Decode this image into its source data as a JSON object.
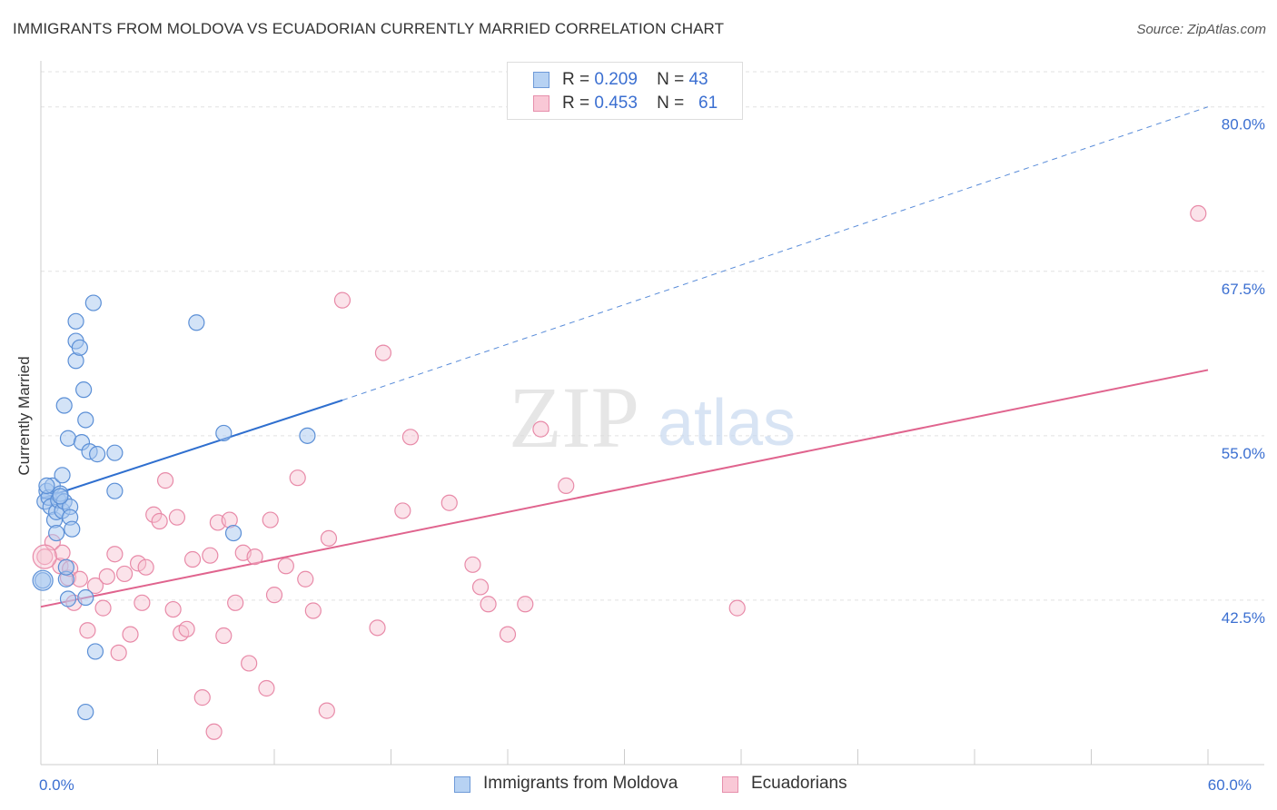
{
  "title": "IMMIGRANTS FROM MOLDOVA VS ECUADORIAN CURRENTLY MARRIED CORRELATION CHART",
  "source": "Source: ZipAtlas.com",
  "watermark": {
    "zip": "ZIP",
    "atlas": "atlas"
  },
  "legend_top": [
    {
      "r_label": "R =",
      "r_value": "0.209",
      "n_label": "N =",
      "n_value": "43"
    },
    {
      "r_label": "R =",
      "r_value": "0.453",
      "n_label": "N =",
      "n_value": "61"
    }
  ],
  "legend_bottom": [
    "Immigrants from Moldova",
    "Ecuadorians"
  ],
  "colors": {
    "blue_fill": "#a8c8f0",
    "blue_stroke": "#5b8fd6",
    "blue_line": "#2f6fcf",
    "pink_fill": "#f6c0d0",
    "pink_stroke": "#e88aa8",
    "pink_line": "#e0648e",
    "tick_label": "#3b6fd1",
    "grid": "#e2e2e2"
  },
  "chart_data": {
    "type": "scatter",
    "title": "IMMIGRANTS FROM MOLDOVA VS ECUADORIAN CURRENTLY MARRIED CORRELATION CHART",
    "xlabel": "",
    "ylabel": "Currently Married",
    "xlim": [
      0,
      60
    ],
    "ylim": [
      30,
      83.5
    ],
    "x_tick_labels": [
      {
        "value": 0,
        "label": "0.0%"
      },
      {
        "value": 60,
        "label": "60.0%"
      }
    ],
    "x_minor_ticks": [
      0,
      6,
      12,
      18,
      24,
      30,
      36,
      42,
      48,
      54,
      60
    ],
    "y_ticks": [
      {
        "value": 42.5,
        "label": "42.5%"
      },
      {
        "value": 55.0,
        "label": "55.0%"
      },
      {
        "value": 67.5,
        "label": "67.5%"
      },
      {
        "value": 80.0,
        "label": "80.0%"
      }
    ],
    "series": [
      {
        "name": "Immigrants from Moldova",
        "color": "blue",
        "r": 0.209,
        "n": 43,
        "trend": {
          "x0": 0,
          "y0": 50.2,
          "x1": 15.5,
          "y1": 57.7,
          "dash_to_x": 60,
          "dash_to_y": 80.0
        },
        "points": [
          [
            0.1,
            44.0
          ],
          [
            0.2,
            50.0
          ],
          [
            0.3,
            50.8
          ],
          [
            0.4,
            50.3
          ],
          [
            0.5,
            49.6
          ],
          [
            0.6,
            51.2
          ],
          [
            0.7,
            48.6
          ],
          [
            0.8,
            47.6
          ],
          [
            0.8,
            49.2
          ],
          [
            0.9,
            50.1
          ],
          [
            1.0,
            50.6
          ],
          [
            1.1,
            49.3
          ],
          [
            1.1,
            52.0
          ],
          [
            1.2,
            50.0
          ],
          [
            1.2,
            57.3
          ],
          [
            1.3,
            44.1
          ],
          [
            1.3,
            45.0
          ],
          [
            1.4,
            42.6
          ],
          [
            1.4,
            54.8
          ],
          [
            1.5,
            49.6
          ],
          [
            1.5,
            48.8
          ],
          [
            1.6,
            47.9
          ],
          [
            1.8,
            63.7
          ],
          [
            1.8,
            62.2
          ],
          [
            1.8,
            60.7
          ],
          [
            2.0,
            61.7
          ],
          [
            2.1,
            54.5
          ],
          [
            2.2,
            58.5
          ],
          [
            2.3,
            56.2
          ],
          [
            2.3,
            42.7
          ],
          [
            2.5,
            53.8
          ],
          [
            2.7,
            65.1
          ],
          [
            2.8,
            38.6
          ],
          [
            2.9,
            53.6
          ],
          [
            2.3,
            34.0
          ],
          [
            3.8,
            53.7
          ],
          [
            3.8,
            50.8
          ],
          [
            8.0,
            63.6
          ],
          [
            9.4,
            55.2
          ],
          [
            9.9,
            47.6
          ],
          [
            13.7,
            55.0
          ],
          [
            0.3,
            51.2
          ],
          [
            1.0,
            50.4
          ]
        ]
      },
      {
        "name": "Ecuadorians",
        "color": "pink",
        "r": 0.453,
        "n": 61,
        "trend": {
          "x0": 0,
          "y0": 42.0,
          "x1": 60,
          "y1": 60.0
        },
        "points": [
          [
            0.2,
            45.8
          ],
          [
            0.6,
            46.9
          ],
          [
            1.0,
            45.1
          ],
          [
            1.1,
            46.1
          ],
          [
            1.4,
            44.2
          ],
          [
            1.5,
            44.9
          ],
          [
            1.7,
            42.3
          ],
          [
            2.0,
            44.1
          ],
          [
            2.4,
            40.2
          ],
          [
            2.8,
            43.6
          ],
          [
            3.2,
            41.9
          ],
          [
            3.4,
            44.3
          ],
          [
            3.8,
            46.0
          ],
          [
            4.0,
            38.5
          ],
          [
            4.3,
            44.5
          ],
          [
            4.6,
            39.9
          ],
          [
            5.0,
            45.3
          ],
          [
            5.2,
            42.3
          ],
          [
            5.4,
            45.0
          ],
          [
            5.8,
            49.0
          ],
          [
            6.1,
            48.5
          ],
          [
            6.4,
            51.6
          ],
          [
            6.8,
            41.8
          ],
          [
            7.0,
            48.8
          ],
          [
            7.2,
            40.0
          ],
          [
            7.5,
            40.3
          ],
          [
            7.8,
            45.6
          ],
          [
            8.3,
            35.1
          ],
          [
            8.7,
            45.9
          ],
          [
            8.9,
            32.5
          ],
          [
            9.1,
            48.4
          ],
          [
            9.4,
            39.8
          ],
          [
            9.7,
            48.6
          ],
          [
            10.0,
            42.3
          ],
          [
            10.4,
            46.1
          ],
          [
            10.7,
            37.7
          ],
          [
            11.0,
            45.8
          ],
          [
            11.6,
            35.8
          ],
          [
            11.8,
            48.6
          ],
          [
            12.0,
            42.9
          ],
          [
            12.6,
            45.1
          ],
          [
            13.2,
            51.8
          ],
          [
            13.6,
            44.1
          ],
          [
            14.0,
            41.7
          ],
          [
            14.7,
            34.1
          ],
          [
            14.8,
            47.2
          ],
          [
            15.5,
            65.3
          ],
          [
            17.3,
            40.4
          ],
          [
            17.6,
            61.3
          ],
          [
            18.6,
            49.3
          ],
          [
            19.0,
            54.9
          ],
          [
            21.0,
            49.9
          ],
          [
            22.2,
            45.2
          ],
          [
            22.6,
            43.5
          ],
          [
            23.0,
            42.2
          ],
          [
            24.0,
            39.9
          ],
          [
            24.9,
            42.2
          ],
          [
            25.7,
            55.5
          ],
          [
            27.0,
            51.2
          ],
          [
            35.8,
            41.9
          ],
          [
            59.5,
            71.9
          ]
        ]
      }
    ]
  }
}
